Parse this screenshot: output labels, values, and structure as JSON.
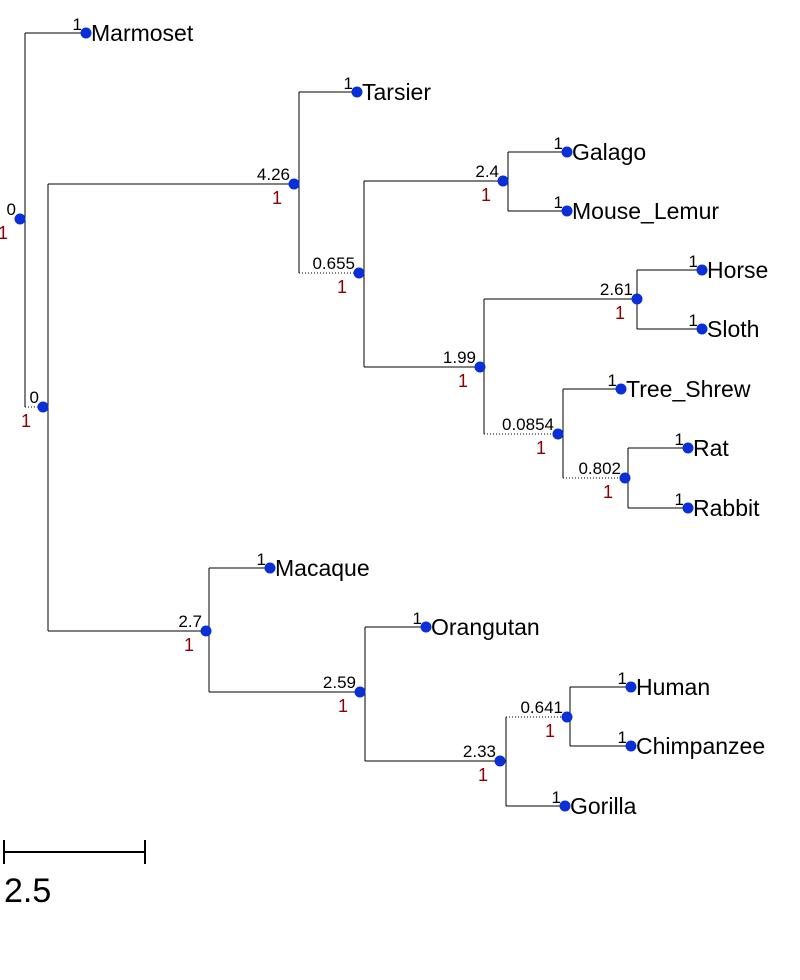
{
  "tree": {
    "branch_color": "#000000",
    "node_color": "#0a2fd6",
    "support_color": "#8b0000",
    "leaves": [
      {
        "name": "Marmoset",
        "branch_length": "1"
      },
      {
        "name": "Tarsier",
        "branch_length": "1"
      },
      {
        "name": "Galago",
        "branch_length": "1"
      },
      {
        "name": "Mouse_Lemur",
        "branch_length": "1"
      },
      {
        "name": "Horse",
        "branch_length": "1"
      },
      {
        "name": "Sloth",
        "branch_length": "1"
      },
      {
        "name": "Tree_Shrew",
        "branch_length": "1"
      },
      {
        "name": "Rat",
        "branch_length": "1"
      },
      {
        "name": "Rabbit",
        "branch_length": "1"
      },
      {
        "name": "Macaque",
        "branch_length": "1"
      },
      {
        "name": "Orangutan",
        "branch_length": "1"
      },
      {
        "name": "Human",
        "branch_length": "1"
      },
      {
        "name": "Chimpanzee",
        "branch_length": "1"
      },
      {
        "name": "Gorilla",
        "branch_length": "1"
      }
    ],
    "internal_nodes": [
      {
        "id": "root",
        "branch_length": "0",
        "support": "1"
      },
      {
        "id": "n_ingroup",
        "branch_length": "0",
        "support": "1"
      },
      {
        "id": "n_tarsier_clade",
        "branch_length": "4.26",
        "support": "1"
      },
      {
        "id": "n_strep_laura",
        "branch_length": "0.655",
        "support": "1"
      },
      {
        "id": "n_galago_lemur",
        "branch_length": "2.4",
        "support": "1"
      },
      {
        "id": "n_laura",
        "branch_length": "1.99",
        "support": "1"
      },
      {
        "id": "n_horse_sloth",
        "branch_length": "2.61",
        "support": "1"
      },
      {
        "id": "n_glires",
        "branch_length": "0.0854",
        "support": "1"
      },
      {
        "id": "n_rat_rabbit",
        "branch_length": "0.802",
        "support": "1"
      },
      {
        "id": "n_macaque_clade",
        "branch_length": "2.7",
        "support": "1"
      },
      {
        "id": "n_great_apes",
        "branch_length": "2.59",
        "support": "1"
      },
      {
        "id": "n_hominini",
        "branch_length": "2.33",
        "support": "1"
      },
      {
        "id": "n_human_chimp",
        "branch_length": "0.641",
        "support": "1"
      }
    ],
    "scale": {
      "label": "2.5",
      "value": 2.5
    }
  }
}
